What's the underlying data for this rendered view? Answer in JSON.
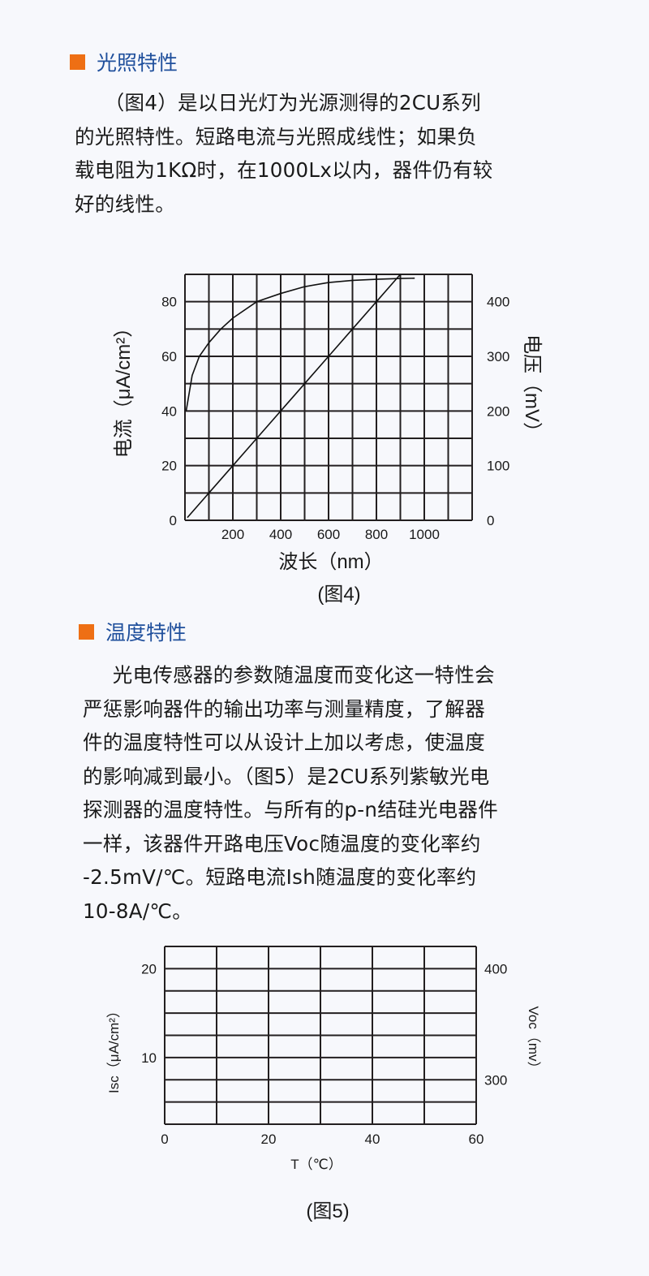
{
  "section1": {
    "heading": "光照特性",
    "paragraph_lines": [
      "（图4）是以日光灯为光源测得的2CU系列",
      "的光照特性。短路电流与光照成线性；如果负",
      "载电阻为1KΩ时，在1000Lx以内，器件仍有较",
      "好的线性。"
    ]
  },
  "section2": {
    "heading": "温度特性",
    "paragraph_lines": [
      "光电传感器的参数随温度而变化这一特性会",
      "严惩影响器件的输出功率与测量精度，了解器",
      "件的温度特性可以从设计上加以考虑，使温度",
      "的影响减到最小。（图5）是2CU系列紫敏光电",
      "探测器的温度特性。与所有的p-n结硅光电器件",
      "一样，该器件开路电压Voc随温度的变化率约",
      "-2.5mV/℃。短路电流Ish随温度的变化率约",
      "10-8A/℃。"
    ]
  },
  "colors": {
    "heading": "#1f4f9c",
    "bullet": "#ee6f14",
    "grid": "#231f20"
  },
  "chart_data": [
    {
      "type": "line",
      "caption": "(图4)",
      "xlabel": "波长（nm）",
      "ylabel": "电流（μA/cm²）",
      "y2label": "电压（mV）",
      "xlim": [
        0,
        1200
      ],
      "ylim": [
        0,
        90
      ],
      "y2lim": [
        0,
        450
      ],
      "xticks": [
        200,
        400,
        600,
        800,
        1000
      ],
      "yticks": [
        0,
        20,
        40,
        60,
        80
      ],
      "y2ticks": [
        0,
        100,
        200,
        300,
        400
      ],
      "grid": true,
      "series": [
        {
          "x": [
            5,
            30,
            60,
            100,
            150,
            200,
            300,
            400,
            500,
            600,
            700,
            800,
            900,
            960
          ],
          "y": [
            40,
            53,
            60,
            65,
            70,
            74,
            80,
            83,
            85.5,
            87,
            87.8,
            88.2,
            88.5,
            88.6
          ]
        },
        {
          "x": [
            10,
            100,
            200,
            300,
            400,
            500,
            600,
            700,
            800,
            900
          ],
          "y": [
            1,
            10,
            20,
            30,
            40,
            50,
            60,
            70,
            80,
            90
          ]
        }
      ]
    },
    {
      "type": "line",
      "caption": "(图5)",
      "xlabel": "T（℃）",
      "ylabel": "Isc（μA/cm²）",
      "y2label": "Voc（mv）",
      "xlim": [
        0,
        60
      ],
      "ylim": [
        2.5,
        22.5
      ],
      "y2lim": [
        260,
        420
      ],
      "xticks": [
        0,
        20,
        40,
        60
      ],
      "yticks": [
        10,
        20
      ],
      "y2ticks": [
        300,
        400
      ],
      "grid": true,
      "series": []
    }
  ]
}
